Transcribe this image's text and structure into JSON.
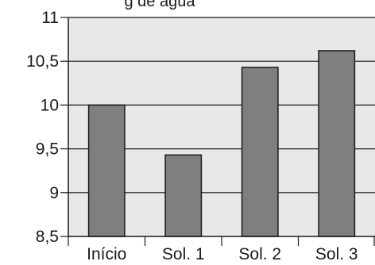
{
  "chart_data": {
    "type": "bar",
    "title": "g de água",
    "categories": [
      "Início",
      "Sol. 1",
      "Sol. 2",
      "Sol. 3"
    ],
    "values": [
      10.0,
      9.43,
      10.43,
      10.62
    ],
    "ylim": [
      8.5,
      11
    ],
    "yticks": [
      8.5,
      9,
      9.5,
      10,
      10.5,
      11
    ],
    "ytick_labels": [
      "8,5",
      "9",
      "9,5",
      "10",
      "10,5",
      "11"
    ],
    "xlabel": "",
    "ylabel": "",
    "grid": true,
    "colors": {
      "plot_background": "#e8e8e8",
      "bar_fill": "#7f7f7f",
      "bar_stroke": "#1a1a1a",
      "grid": "#1a1a1a"
    }
  }
}
